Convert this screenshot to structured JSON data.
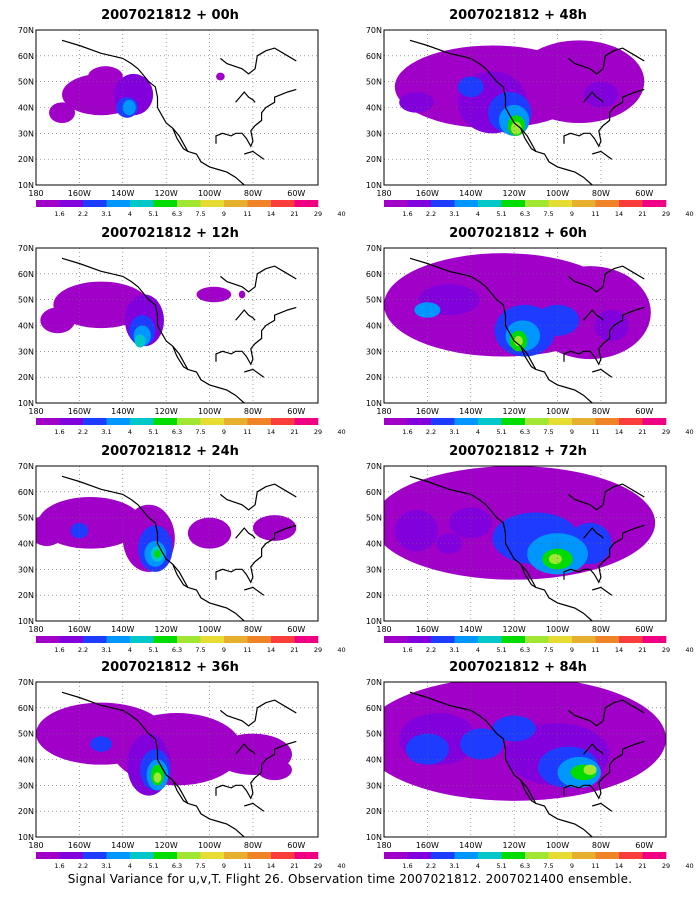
{
  "panels": [
    {
      "title": "2007021812 + 00h",
      "lead": 0
    },
    {
      "title": "2007021812 + 48h",
      "lead": 48
    },
    {
      "title": "2007021812 + 12h",
      "lead": 12
    },
    {
      "title": "2007021812 + 60h",
      "lead": 60
    },
    {
      "title": "2007021812 + 24h",
      "lead": 24
    },
    {
      "title": "2007021812 + 72h",
      "lead": 72
    },
    {
      "title": "2007021812 + 36h",
      "lead": 36
    },
    {
      "title": "2007021812 + 84h",
      "lead": 84
    }
  ],
  "lat_labels": [
    "10N",
    "20N",
    "30N",
    "40N",
    "50N",
    "60N",
    "70N"
  ],
  "lon_labels": [
    "180",
    "160W",
    "140W",
    "120W",
    "100W",
    "80W",
    "60W"
  ],
  "colorbar": {
    "labels": [
      "1.6",
      "2.2",
      "3.1",
      "4",
      "5.1",
      "6.3",
      "7.5",
      "9",
      "11",
      "14",
      "21",
      "29",
      "40"
    ],
    "colors": [
      "#a000c8",
      "#8200dc",
      "#1e3cff",
      "#0096ff",
      "#00c8c8",
      "#00dc00",
      "#a0e632",
      "#e6dc32",
      "#e6af2d",
      "#f08228",
      "#fa3c3c",
      "#f00082"
    ]
  },
  "footer": "Signal Variance for u,v,T. Flight 26. Observation time 2007021812. 2007021400 ensemble."
}
